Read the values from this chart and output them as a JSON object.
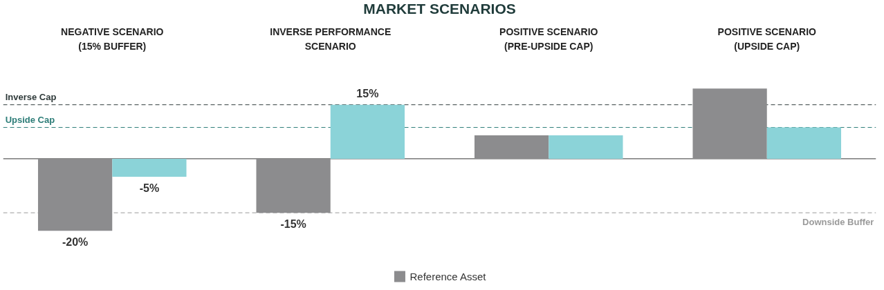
{
  "chart_data": {
    "type": "bar",
    "title": "MARKET SCENARIOS",
    "categories": [
      "NEGATIVE SCENARIO\n(15% BUFFER)",
      "INVERSE PERFORMANCE\nSCENARIO",
      "POSITIVE SCENARIO\n(PRE-UPSIDE CAP)",
      "POSITIVE SCENARIO\n(UPSIDE CAP)"
    ],
    "series": [
      {
        "name": "Reference Asset",
        "color": "#8c8c8e",
        "values": [
          -20,
          -15,
          6.5,
          19.5
        ],
        "value_labels": [
          "-20%",
          "-15%",
          null,
          null
        ]
      },
      {
        "color": "#8bd3d8",
        "values": [
          -5,
          15,
          6.5,
          8.7
        ],
        "value_labels": [
          "-5%",
          "15%",
          null,
          null
        ]
      }
    ],
    "ref_lines": [
      {
        "axis": "y",
        "value": 15,
        "label": "Inverse Cap",
        "color": "#2f3a3a",
        "line_style": "dashed"
      },
      {
        "axis": "y",
        "value": 8.7,
        "label": "Upside Cap",
        "color": "#2d7d78",
        "line_style": "dashed"
      },
      {
        "axis": "y",
        "value": -15,
        "label": "Downside Buffer",
        "color": "#9a9a9a",
        "line_style": "dashed"
      }
    ],
    "legend": "bottom"
  }
}
